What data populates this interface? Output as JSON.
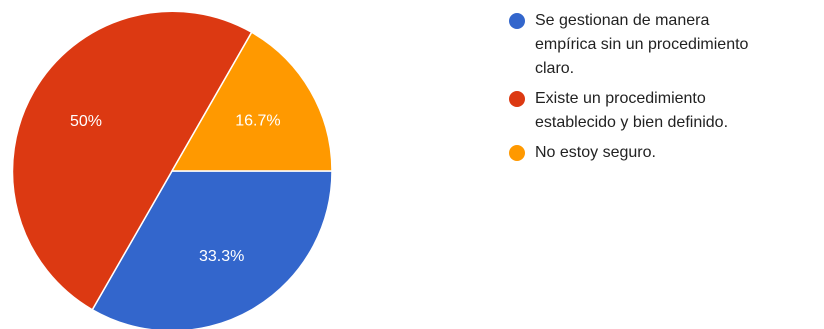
{
  "chart_data": {
    "type": "pie",
    "slices": [
      {
        "label": "Se gestionan de manera empírica sin un procedimiento claro.",
        "legend_lines": [
          "Se gestionan de manera",
          "empírica sin un procedimiento",
          "claro."
        ],
        "value": 33.3,
        "display": "33.3%",
        "color": "#3366cc"
      },
      {
        "label": "Existe un procedimiento establecido y bien definido.",
        "legend_lines": [
          "Existe un procedimiento",
          "establecido y bien definido."
        ],
        "value": 50,
        "display": "50%",
        "color": "#dc3912"
      },
      {
        "label": "No estoy seguro.",
        "legend_lines": [
          "No estoy seguro."
        ],
        "value": 16.7,
        "display": "16.7%",
        "color": "#ff9900"
      }
    ],
    "start": "3 o'clock",
    "direction": "clockwise",
    "legend_position": "right"
  }
}
